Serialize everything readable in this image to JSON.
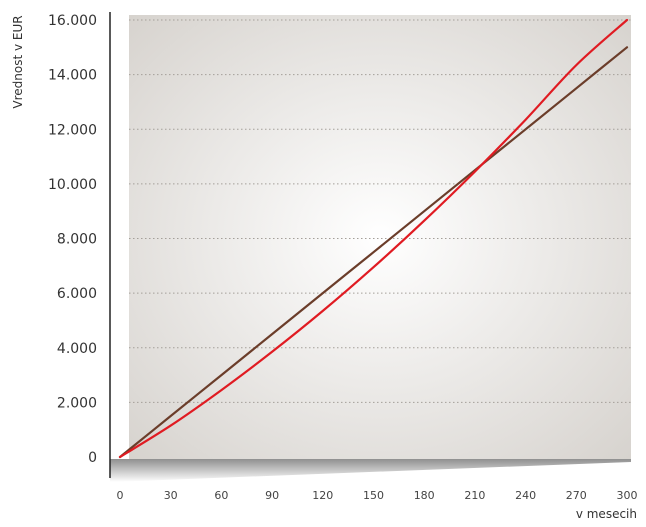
{
  "chart_data": {
    "type": "line",
    "title": "",
    "xlabel": "v mesecih",
    "ylabel": "Vrednost v EUR",
    "xlim": [
      0,
      300
    ],
    "ylim": [
      0,
      16000
    ],
    "grid": true,
    "x_ticks": [
      "0",
      "30",
      "60",
      "90",
      "120",
      "150",
      "180",
      "210",
      "240",
      "270",
      "300"
    ],
    "y_ticks": [
      "0",
      "2.000",
      "4.000",
      "6.000",
      "8.000",
      "10.000",
      "12.000",
      "14.000",
      "16.000"
    ],
    "series": [
      {
        "color": "#6b3d2a",
        "x": [
          0,
          30,
          60,
          90,
          120,
          150,
          180,
          210,
          240,
          270,
          300
        ],
        "values": [
          0,
          1500,
          3000,
          4500,
          6000,
          7500,
          9000,
          10500,
          12000,
          13500,
          15000
        ]
      },
      {
        "color": "#e01b22",
        "x": [
          0,
          30,
          60,
          90,
          120,
          150,
          180,
          210,
          240,
          270,
          300
        ],
        "values": [
          0,
          1150,
          2450,
          3850,
          5350,
          6950,
          8650,
          10450,
          12350,
          14350,
          16000
        ]
      }
    ]
  }
}
